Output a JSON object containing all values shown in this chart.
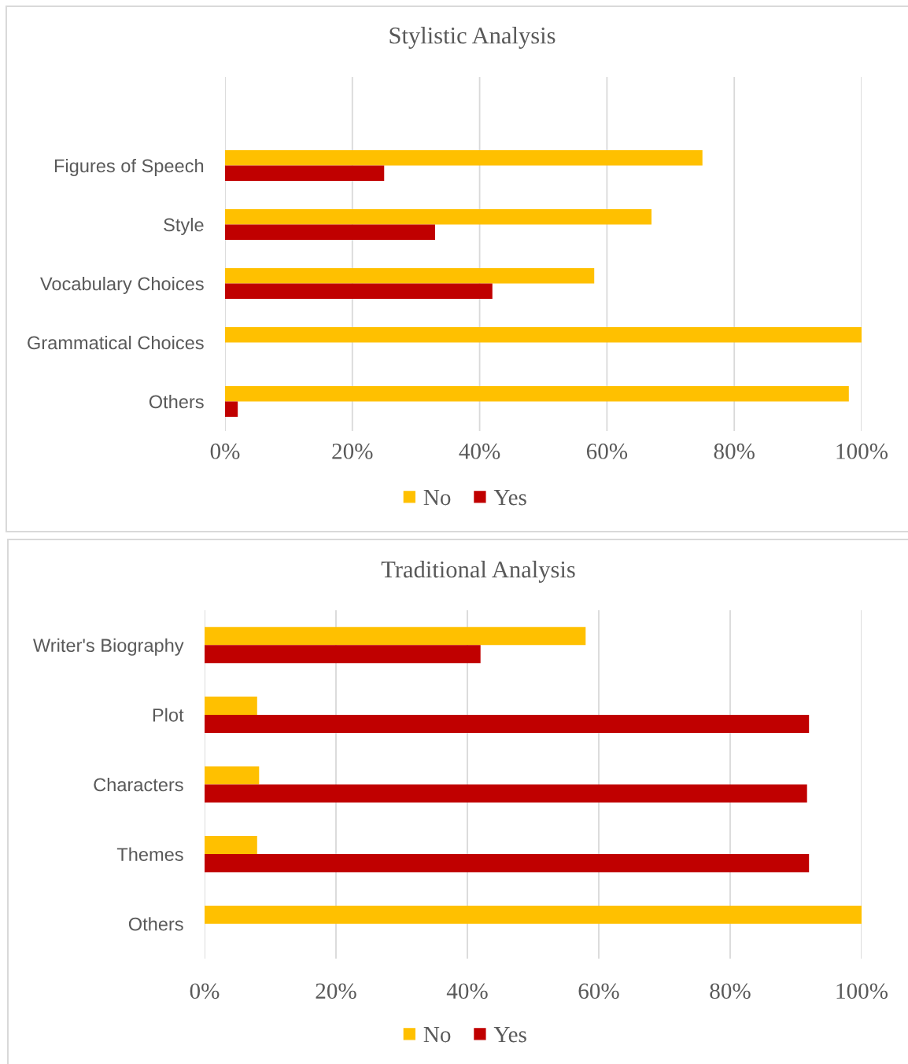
{
  "chart_data": [
    {
      "type": "bar",
      "orientation": "horizontal",
      "title": "Stylistic Analysis",
      "categories": [
        null,
        "Figures of Speech",
        "Style",
        "Vocabulary Choices",
        "Grammatical Choices",
        "Others"
      ],
      "series": [
        {
          "name": "No",
          "color": "#ffc000",
          "values": [
            null,
            75,
            67,
            58,
            100,
            98
          ]
        },
        {
          "name": "Yes",
          "color": "#c00000",
          "values": [
            null,
            25,
            33,
            42,
            0,
            2
          ]
        }
      ],
      "xlim": [
        0,
        100
      ],
      "xticks": [
        {
          "value": 0,
          "label": "0%"
        },
        {
          "value": 20,
          "label": "20%"
        },
        {
          "value": 40,
          "label": "40%"
        },
        {
          "value": 60,
          "label": "60%"
        },
        {
          "value": 80,
          "label": "80%"
        },
        {
          "value": 100,
          "label": "100%"
        }
      ],
      "grid": "x",
      "legend": "bottom"
    },
    {
      "type": "bar",
      "orientation": "horizontal",
      "title": "Traditional Analysis",
      "categories": [
        "Writer's Biography",
        "Plot",
        "Characters",
        "Themes",
        "Others"
      ],
      "series": [
        {
          "name": "No",
          "color": "#ffc000",
          "values": [
            58,
            8,
            8.3,
            8,
            100
          ]
        },
        {
          "name": "Yes",
          "color": "#c00000",
          "values": [
            42,
            92,
            91.7,
            92,
            0
          ]
        }
      ],
      "xlim": [
        0,
        100
      ],
      "xticks": [
        {
          "value": 0,
          "label": "0%"
        },
        {
          "value": 20,
          "label": "20%"
        },
        {
          "value": 40,
          "label": "40%"
        },
        {
          "value": 60,
          "label": "60%"
        },
        {
          "value": 80,
          "label": "80%"
        },
        {
          "value": 100,
          "label": "100%"
        }
      ],
      "grid": "x",
      "legend": "bottom"
    }
  ]
}
